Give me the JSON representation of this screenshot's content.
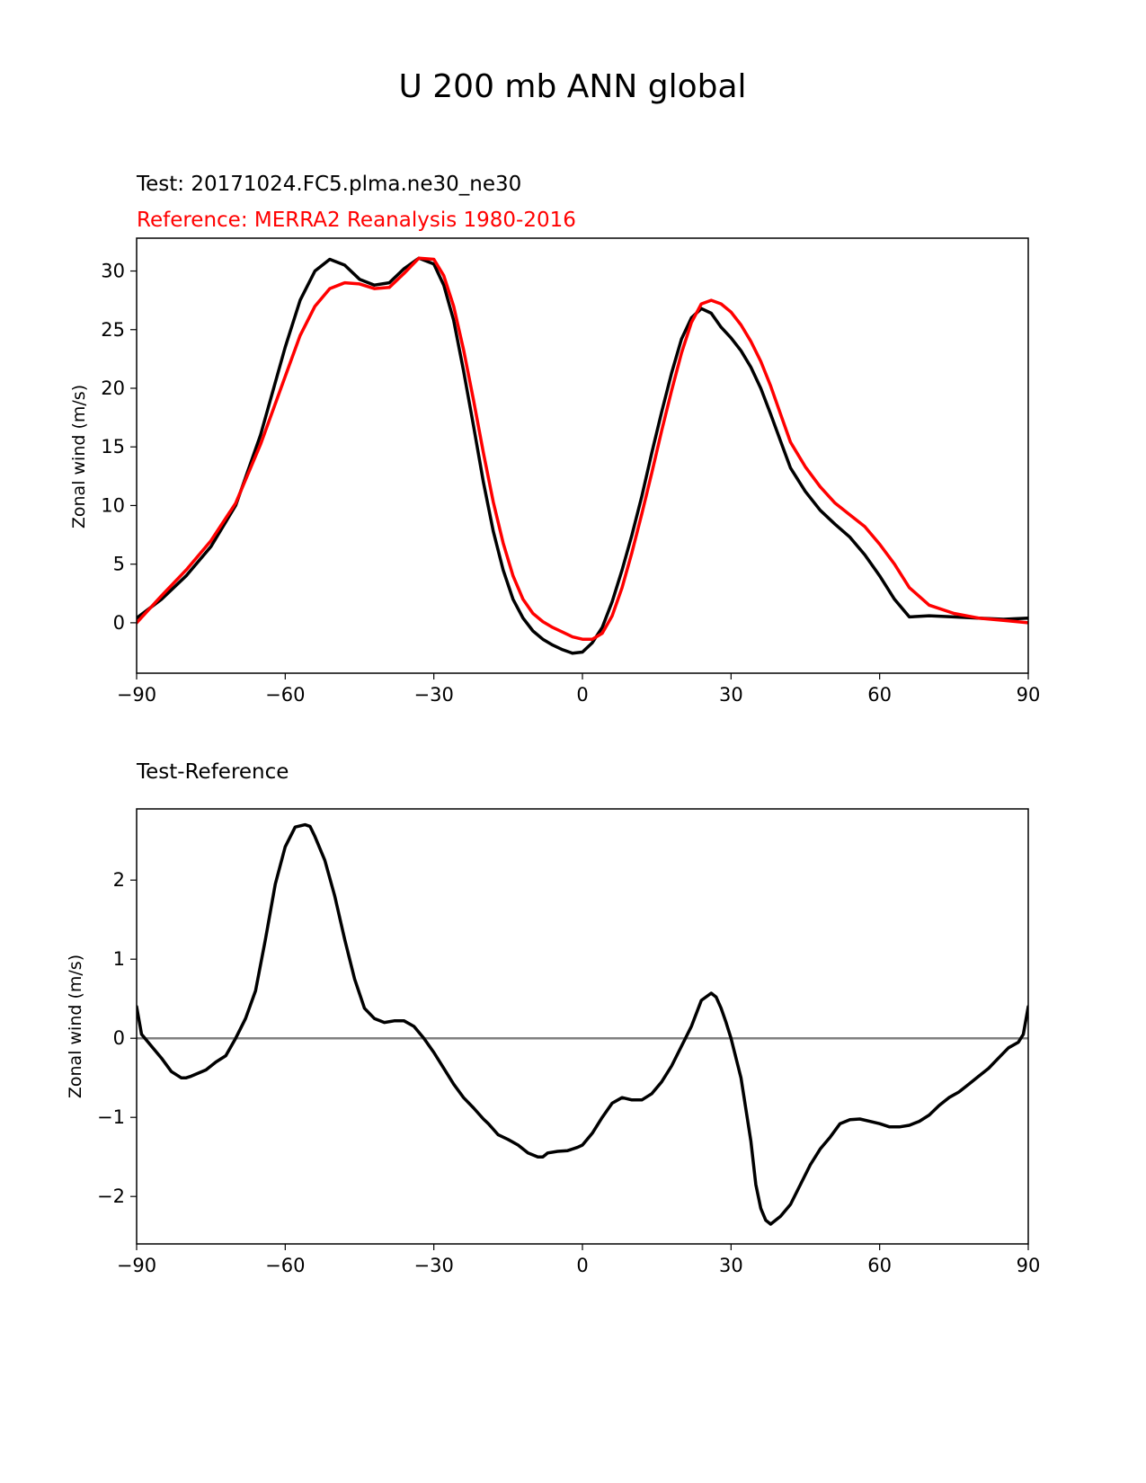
{
  "figure": {
    "title": "U 200 mb ANN global"
  },
  "colors": {
    "test": "#000000",
    "reference": "#ff0000",
    "zero_line": "#808080"
  },
  "chart_data": [
    {
      "type": "line",
      "subtitle_test": "Test: 20171024.FC5.plma.ne30_ne30",
      "subtitle_reference": "Reference: MERRA2 Reanalysis 1980-2016",
      "xlabel": "",
      "ylabel": "Zonal wind (m/s)",
      "xlim": [
        -90,
        90
      ],
      "ylim": [
        -4.3,
        32.8
      ],
      "xticks": [
        -90,
        -60,
        -30,
        0,
        30,
        60,
        90
      ],
      "xtick_labels": [
        "−90",
        "−60",
        "−30",
        "0",
        "30",
        "60",
        "90"
      ],
      "yticks": [
        0,
        5,
        10,
        15,
        20,
        25,
        30
      ],
      "ytick_labels": [
        "0",
        "5",
        "10",
        "15",
        "20",
        "25",
        "30"
      ],
      "series": [
        {
          "name": "Test",
          "x": [
            -90,
            -85,
            -80,
            -75,
            -70,
            -65,
            -60,
            -57,
            -54,
            -51,
            -48,
            -45,
            -42,
            -39,
            -36,
            -33,
            -30,
            -28,
            -26,
            -24,
            -22,
            -20,
            -18,
            -16,
            -14,
            -12,
            -10,
            -8,
            -6,
            -4,
            -2,
            0,
            2,
            4,
            6,
            8,
            10,
            12,
            14,
            16,
            18,
            20,
            22,
            24,
            26,
            28,
            30,
            32,
            34,
            36,
            38,
            40,
            42,
            45,
            48,
            51,
            54,
            57,
            60,
            63,
            66,
            70,
            75,
            80,
            85,
            90
          ],
          "values": [
            0.4,
            2.0,
            4.0,
            6.5,
            10.0,
            16.0,
            23.5,
            27.5,
            30.0,
            31.0,
            30.5,
            29.3,
            28.8,
            29.0,
            30.2,
            31.1,
            30.6,
            28.8,
            25.8,
            21.5,
            16.8,
            12.0,
            7.8,
            4.5,
            2.0,
            0.4,
            -0.7,
            -1.4,
            -1.9,
            -2.3,
            -2.6,
            -2.5,
            -1.7,
            -0.4,
            1.8,
            4.5,
            7.5,
            10.8,
            14.5,
            18.0,
            21.3,
            24.2,
            26.0,
            26.8,
            26.4,
            25.2,
            24.3,
            23.2,
            21.8,
            20.0,
            17.8,
            15.5,
            13.2,
            11.2,
            9.6,
            8.4,
            7.3,
            5.8,
            4.0,
            2.0,
            0.5,
            0.6,
            0.5,
            0.4,
            0.3,
            0.4
          ],
          "color": "#000000"
        },
        {
          "name": "Reference",
          "x": [
            -90,
            -85,
            -80,
            -75,
            -70,
            -65,
            -60,
            -57,
            -54,
            -51,
            -48,
            -45,
            -42,
            -39,
            -36,
            -33,
            -30,
            -28,
            -26,
            -24,
            -22,
            -20,
            -18,
            -16,
            -14,
            -12,
            -10,
            -8,
            -6,
            -4,
            -2,
            0,
            2,
            4,
            6,
            8,
            10,
            12,
            14,
            16,
            18,
            20,
            22,
            24,
            26,
            28,
            30,
            32,
            34,
            36,
            38,
            40,
            42,
            45,
            48,
            51,
            54,
            57,
            60,
            63,
            66,
            70,
            75,
            80,
            85,
            90
          ],
          "values": [
            0.0,
            2.3,
            4.5,
            7.0,
            10.2,
            15.2,
            21.0,
            24.5,
            27.0,
            28.5,
            29.0,
            28.9,
            28.5,
            28.6,
            29.8,
            31.1,
            31.0,
            29.6,
            27.0,
            23.3,
            19.0,
            14.5,
            10.3,
            6.8,
            4.0,
            2.0,
            0.8,
            0.1,
            -0.4,
            -0.8,
            -1.2,
            -1.4,
            -1.4,
            -0.9,
            0.6,
            3.0,
            6.0,
            9.3,
            12.8,
            16.4,
            19.8,
            23.0,
            25.6,
            27.2,
            27.5,
            27.2,
            26.5,
            25.4,
            24.0,
            22.3,
            20.2,
            17.8,
            15.4,
            13.3,
            11.6,
            10.2,
            9.2,
            8.2,
            6.7,
            5.0,
            3.0,
            1.5,
            0.8,
            0.4,
            0.2,
            0.0
          ],
          "color": "#ff0000"
        }
      ]
    },
    {
      "type": "line",
      "subtitle": "Test-Reference",
      "xlabel": "",
      "ylabel": "Zonal wind (m/s)",
      "xlim": [
        -90,
        90
      ],
      "ylim": [
        -2.6,
        2.9
      ],
      "xticks": [
        -90,
        -60,
        -30,
        0,
        30,
        60,
        90
      ],
      "xtick_labels": [
        "−90",
        "−60",
        "−30",
        "0",
        "30",
        "60",
        "90"
      ],
      "yticks": [
        -2,
        -1,
        0,
        1,
        2
      ],
      "ytick_labels": [
        "−2",
        "−1",
        "0",
        "1",
        "2"
      ],
      "zero_line": true,
      "series": [
        {
          "name": "Test-Reference",
          "x": [
            -90,
            -89,
            -87,
            -85,
            -83,
            -81,
            -80,
            -79,
            -76,
            -74,
            -72,
            -70,
            -68,
            -66,
            -64,
            -62,
            -60,
            -58,
            -56,
            -55,
            -54,
            -52,
            -50,
            -48,
            -46,
            -44,
            -42,
            -40,
            -38,
            -36,
            -34,
            -32,
            -30,
            -28,
            -26,
            -24,
            -22,
            -20,
            -19,
            -18,
            -17,
            -15,
            -13,
            -11,
            -9,
            -8,
            -7,
            -5,
            -3,
            -1,
            0,
            2,
            4,
            6,
            8,
            10,
            12,
            14,
            16,
            18,
            20,
            22,
            24,
            26,
            27,
            28,
            29,
            30,
            32,
            34,
            35,
            36,
            37,
            38,
            39,
            40,
            42,
            44,
            46,
            48,
            50,
            52,
            54,
            56,
            58,
            60,
            62,
            64,
            66,
            68,
            70,
            72,
            74,
            76,
            78,
            80,
            82,
            84,
            86,
            88,
            89,
            90
          ],
          "values": [
            0.4,
            0.05,
            -0.1,
            -0.25,
            -0.42,
            -0.5,
            -0.5,
            -0.48,
            -0.4,
            -0.3,
            -0.22,
            0.0,
            0.25,
            0.6,
            1.25,
            1.95,
            2.42,
            2.67,
            2.7,
            2.68,
            2.55,
            2.25,
            1.8,
            1.25,
            0.75,
            0.38,
            0.25,
            0.2,
            0.22,
            0.22,
            0.15,
            0.0,
            -0.18,
            -0.38,
            -0.58,
            -0.75,
            -0.88,
            -1.02,
            -1.08,
            -1.15,
            -1.22,
            -1.28,
            -1.35,
            -1.45,
            -1.5,
            -1.5,
            -1.45,
            -1.43,
            -1.42,
            -1.38,
            -1.35,
            -1.2,
            -1.0,
            -0.82,
            -0.75,
            -0.78,
            -0.78,
            -0.7,
            -0.55,
            -0.35,
            -0.1,
            0.15,
            0.48,
            0.57,
            0.52,
            0.38,
            0.2,
            0.0,
            -0.5,
            -1.3,
            -1.85,
            -2.15,
            -2.3,
            -2.35,
            -2.3,
            -2.25,
            -2.1,
            -1.85,
            -1.6,
            -1.4,
            -1.25,
            -1.08,
            -1.03,
            -1.02,
            -1.05,
            -1.08,
            -1.12,
            -1.12,
            -1.1,
            -1.05,
            -0.97,
            -0.85,
            -0.75,
            -0.68,
            -0.58,
            -0.48,
            -0.38,
            -0.25,
            -0.12,
            -0.05,
            0.05,
            0.4
          ],
          "color": "#000000"
        }
      ]
    }
  ]
}
